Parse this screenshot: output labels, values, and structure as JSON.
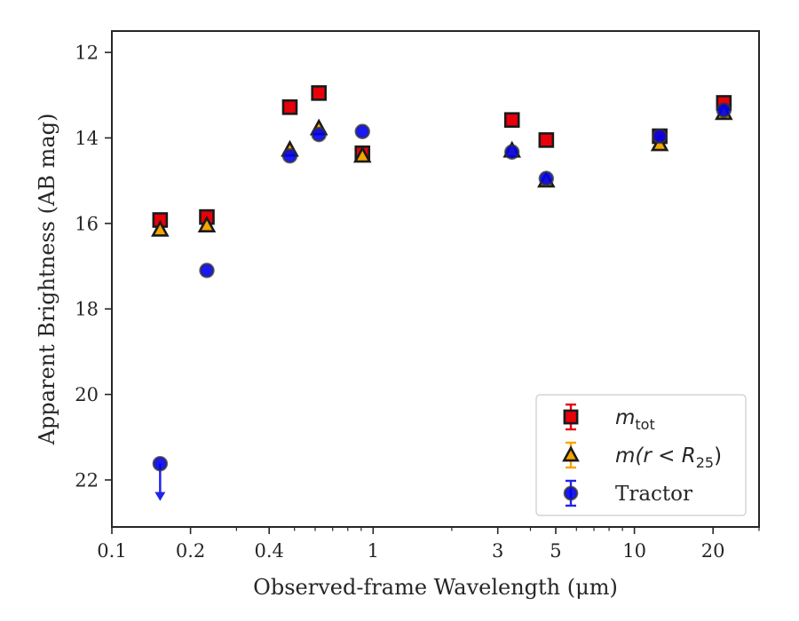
{
  "chart_data": {
    "type": "scatter",
    "xlabel": "Observed-frame Wavelength (μm)",
    "ylabel": "Apparent Brightness (AB mag)",
    "xscale": "log",
    "xlim": [
      0.1,
      30
    ],
    "ylim": [
      23.1,
      11.5
    ],
    "y_inverted": true,
    "x_ticks": [
      0.1,
      0.2,
      0.4,
      1,
      3,
      5,
      10,
      20
    ],
    "x_tick_labels": [
      "0.1",
      "0.2",
      "0.4",
      "1",
      "3",
      "5",
      "10",
      "20"
    ],
    "y_ticks": [
      12,
      14,
      16,
      18,
      20,
      22
    ],
    "y_tick_labels": [
      "12",
      "14",
      "16",
      "18",
      "20",
      "22"
    ],
    "grid": false,
    "legend_position": "lower-right",
    "series": [
      {
        "name": "m_tot",
        "legend_main": "m",
        "legend_sub": "tot",
        "marker": "square",
        "fill": "#e8000b",
        "edge": "#1a1a1a",
        "x": [
          0.153,
          0.231,
          0.48,
          0.62,
          0.91,
          3.4,
          4.6,
          12.5,
          22.0
        ],
        "y": [
          15.92,
          15.85,
          13.28,
          12.95,
          14.36,
          13.58,
          14.05,
          13.96,
          13.18
        ]
      },
      {
        "name": "m(r < R_25)",
        "legend_main": "m(r < R",
        "legend_sub": "25",
        "legend_tail": ")",
        "marker": "triangle",
        "fill": "#f5a500",
        "edge": "#1a1a1a",
        "x": [
          0.153,
          0.231,
          0.48,
          0.62,
          0.91,
          3.4,
          4.6,
          12.5,
          22.0
        ],
        "y": [
          16.15,
          16.05,
          14.28,
          13.78,
          14.42,
          14.3,
          15.0,
          14.15,
          13.42
        ]
      },
      {
        "name": "Tractor",
        "legend_label": "Tractor",
        "marker": "circle",
        "fill": "#0000ee",
        "edge": "#333333",
        "x": [
          0.153,
          0.231,
          0.48,
          0.62,
          0.91,
          3.4,
          4.6,
          12.5,
          22.0
        ],
        "y": [
          21.62,
          17.1,
          14.42,
          13.92,
          13.85,
          14.33,
          14.95,
          13.96,
          13.35
        ],
        "upper_limit_index": 0
      }
    ]
  }
}
